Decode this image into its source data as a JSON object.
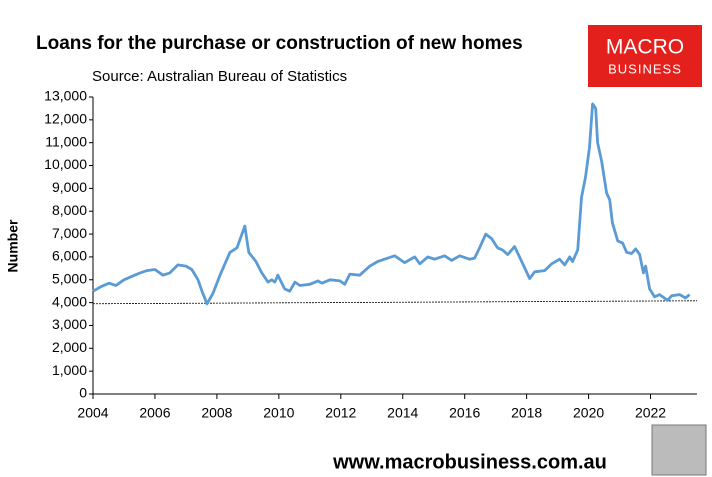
{
  "chart_data": {
    "type": "line",
    "title": "Loans for the purchase or construction of new homes",
    "subtitle": "Source: Australian Bureau of Statistics",
    "ylabel": "Number",
    "logo": [
      "MACRO",
      "BUSINESS"
    ],
    "footer": "www.macrobusiness.com.au",
    "x": [
      2004.0,
      2004.26,
      2004.52,
      2004.74,
      2005.0,
      2005.26,
      2005.52,
      2005.74,
      2006.0,
      2006.26,
      2006.48,
      2006.74,
      2007.0,
      2007.19,
      2007.39,
      2007.52,
      2007.68,
      2007.87,
      2008.1,
      2008.42,
      2008.65,
      2008.9,
      2009.03,
      2009.26,
      2009.45,
      2009.65,
      2009.77,
      2009.87,
      2009.97,
      2010.19,
      2010.35,
      2010.52,
      2010.68,
      2011.0,
      2011.26,
      2011.39,
      2011.65,
      2011.97,
      2012.13,
      2012.29,
      2012.61,
      2012.94,
      2013.19,
      2013.52,
      2013.74,
      2014.06,
      2014.39,
      2014.55,
      2014.81,
      2015.03,
      2015.35,
      2015.58,
      2015.84,
      2016.16,
      2016.32,
      2016.48,
      2016.68,
      2016.87,
      2017.06,
      2017.23,
      2017.39,
      2017.61,
      2017.84,
      2018.1,
      2018.26,
      2018.58,
      2018.81,
      2019.06,
      2019.23,
      2019.39,
      2019.48,
      2019.65,
      2019.77,
      2019.9,
      2020.03,
      2020.13,
      2020.23,
      2020.29,
      2020.42,
      2020.58,
      2020.68,
      2020.77,
      2020.94,
      2021.1,
      2021.23,
      2021.39,
      2021.52,
      2021.65,
      2021.77,
      2021.84,
      2021.97,
      2022.13,
      2022.29,
      2022.55,
      2022.68,
      2022.94,
      2023.13,
      2023.26
    ],
    "series": [
      {
        "name": "Loans",
        "color": "#5b9bd5",
        "values": [
          4500,
          4700,
          4850,
          4750,
          5000,
          5150,
          5300,
          5400,
          5450,
          5200,
          5300,
          5650,
          5600,
          5450,
          5000,
          4500,
          3950,
          4400,
          5200,
          6200,
          6400,
          7350,
          6200,
          5800,
          5300,
          4900,
          5000,
          4900,
          5200,
          4600,
          4500,
          4900,
          4750,
          4800,
          4950,
          4850,
          5000,
          4950,
          4800,
          5250,
          5200,
          5600,
          5800,
          5950,
          6050,
          5750,
          6000,
          5700,
          6000,
          5900,
          6050,
          5850,
          6050,
          5900,
          5950,
          6400,
          7000,
          6800,
          6400,
          6300,
          6100,
          6450,
          5800,
          5050,
          5350,
          5400,
          5700,
          5900,
          5650,
          6000,
          5800,
          6300,
          8600,
          9500,
          10800,
          12700,
          12500,
          11000,
          10200,
          8800,
          8500,
          7500,
          6700,
          6600,
          6200,
          6150,
          6350,
          6100,
          5300,
          5600,
          4600,
          4250,
          4350,
          4100,
          4300,
          4350,
          4200,
          4350
        ]
      }
    ],
    "reference_line": {
      "x": [
        2004,
        2023.5
      ],
      "values": [
        3950,
        4080
      ]
    },
    "xlim": [
      2004,
      2023.5
    ],
    "xticks": [
      2004,
      2006,
      2008,
      2010,
      2012,
      2014,
      2016,
      2018,
      2020,
      2022
    ],
    "ylim": [
      0,
      13000
    ],
    "yticks": [
      0,
      {
        "value": 1000,
        "label": "1,000"
      },
      {
        "value": 2000,
        "label": "2,000"
      },
      {
        "value": 3000,
        "label": "3,000"
      },
      {
        "value": 4000,
        "label": "4,000"
      },
      {
        "value": 5000,
        "label": "5,000"
      },
      {
        "value": 6000,
        "label": "6,000"
      },
      {
        "value": 7000,
        "label": "7,000"
      },
      {
        "value": 8000,
        "label": "8,000"
      },
      {
        "value": 9000,
        "label": "9,000"
      },
      {
        "value": 10000,
        "label": "10,000"
      },
      {
        "value": 11000,
        "label": "11,000"
      },
      {
        "value": 12000,
        "label": "12,000"
      },
      {
        "value": 13000,
        "label": "13,000"
      }
    ],
    "grid": false
  }
}
